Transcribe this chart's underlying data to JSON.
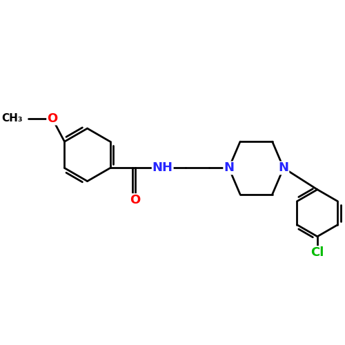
{
  "bg_color": "#ffffff",
  "bond_color": "#000000",
  "bond_width": 2.0,
  "atom_colors": {
    "N": "#2626ff",
    "O": "#ff0000",
    "Cl": "#00bb00",
    "C": "#000000"
  },
  "font_size_atom": 13,
  "fig_width": 5.0,
  "fig_height": 5.0,
  "dpi": 100,
  "xlim": [
    0,
    10
  ],
  "ylim": [
    0,
    10
  ],
  "methoxy_group": {
    "label": "O",
    "methyl_label": "CH₃"
  },
  "carbonyl_O_label": "O",
  "NH_label": "NH",
  "N1_label": "N",
  "N2_label": "N",
  "Cl_label": "Cl"
}
